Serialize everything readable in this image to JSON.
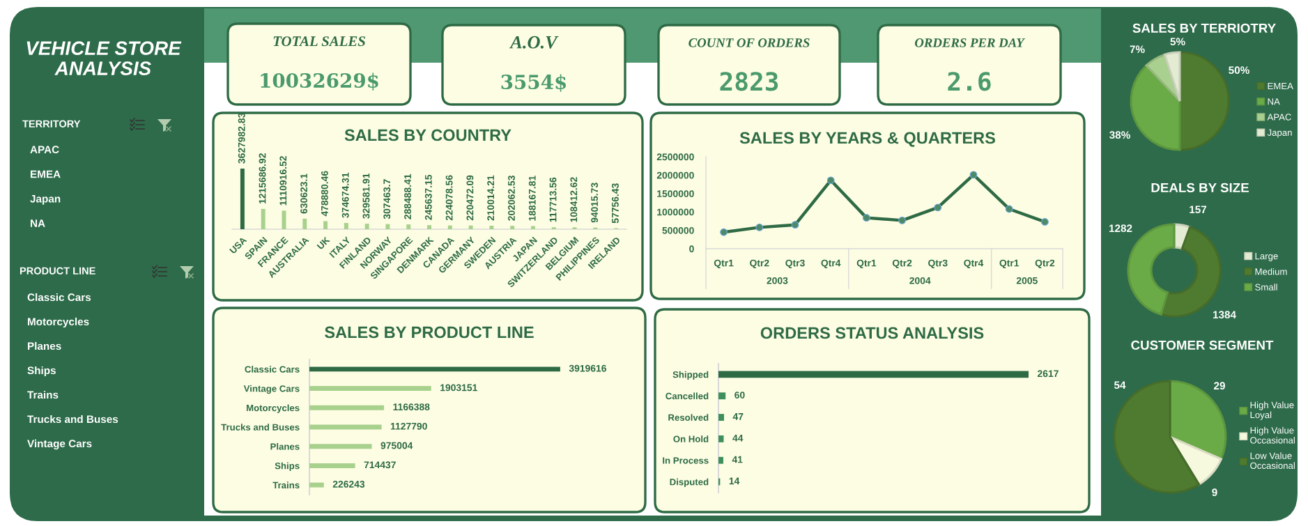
{
  "chart_data": [
    {
      "type": "other",
      "title": "VEHICLE STORE ANALYSIS"
    },
    {
      "type": "other",
      "title": "TERRITORY",
      "annotations": [
        "APAC",
        "EMEA",
        "Japan",
        "NA"
      ]
    },
    {
      "type": "other",
      "title": "PRODUCT LINE",
      "annotations": [
        "Classic Cars",
        "Motorcycles",
        "Planes",
        "Ships",
        "Trains",
        "Trucks and Buses",
        "Vintage Cars"
      ]
    },
    {
      "type": "other",
      "title": "TOTAL SALES",
      "annotations": [
        "10032629$"
      ]
    },
    {
      "type": "other",
      "title": "A.O.V",
      "annotations": [
        "3554$"
      ]
    },
    {
      "type": "other",
      "title": "COUNT OF ORDERS",
      "annotations": [
        "2823"
      ]
    },
    {
      "type": "other",
      "title": "ORDERS PER DAY",
      "annotations": [
        "2.6"
      ]
    },
    {
      "type": "bar",
      "title": "SALES BY COUNTRY",
      "categories": [
        "USA",
        "SPAIN",
        "FRANCE",
        "AUSTRALIA",
        "UK",
        "ITALY",
        "FINLAND",
        "NORWAY",
        "SINGAPORE",
        "DENMARK",
        "CANADA",
        "GERMANY",
        "SWEDEN",
        "AUSTRIA",
        "JAPAN",
        "SWITZERLAND",
        "BELGIUM",
        "PHILIPPINES",
        "IRELAND"
      ],
      "values": [
        3627982.83,
        1215686.92,
        1110916.52,
        630623.1,
        478880.46,
        374674.31,
        329581.91,
        307463.7,
        288488.41,
        245637.15,
        224078.56,
        220472.09,
        210014.21,
        202062.53,
        188167.81,
        117713.56,
        108412.62,
        94015.73,
        57756.43
      ],
      "colors": [
        "#2e6b45",
        "#a9d18e",
        "#a9d18e",
        "#a9d18e",
        "#a9d18e",
        "#a9d18e",
        "#a9d18e",
        "#a9d18e",
        "#a9d18e",
        "#a9d18e",
        "#a9d18e",
        "#a9d18e",
        "#a9d18e",
        "#a9d18e",
        "#a9d18e",
        "#a9d18e",
        "#a9d18e",
        "#a9d18e",
        "#a9d18e"
      ],
      "data_labels": true
    },
    {
      "type": "line",
      "title": "SALES BY YEARS & QUARTERS",
      "categories": [
        "Qtr1",
        "Qtr2",
        "Qtr3",
        "Qtr4",
        "Qtr1",
        "Qtr2",
        "Qtr3",
        "Qtr4",
        "Qtr1",
        "Qtr2"
      ],
      "annotations": [
        "2003",
        "2004",
        "2005"
      ],
      "values": [
        450000,
        580000,
        650000,
        1860000,
        840000,
        770000,
        1120000,
        2010000,
        1080000,
        730000
      ],
      "color": "#2e6b45",
      "marker": "circle",
      "ylim": [
        0,
        2500000
      ],
      "yticks": [
        0,
        500000,
        1000000,
        1500000,
        2000000,
        2500000
      ]
    },
    {
      "type": "bar",
      "orientation": "horizontal",
      "title": "SALES BY PRODUCT LINE",
      "categories": [
        "Classic Cars",
        "Vintage Cars",
        "Motorcycles",
        "Trucks and Buses",
        "Planes",
        "Ships",
        "Trains"
      ],
      "values": [
        3919616,
        1903151,
        1166388,
        1127790,
        975004,
        714437,
        226243
      ],
      "colors": [
        "#2e6b45",
        "#a9d18e",
        "#a9d18e",
        "#a9d18e",
        "#a9d18e",
        "#a9d18e",
        "#a9d18e"
      ],
      "data_labels": true
    },
    {
      "type": "bar",
      "orientation": "horizontal",
      "title": "ORDERS STATUS ANALYSIS",
      "categories": [
        "Shipped",
        "Cancelled",
        "Resolved",
        "On Hold",
        "In Process",
        "Disputed"
      ],
      "values": [
        2617,
        60,
        47,
        44,
        41,
        14
      ],
      "colors": [
        "#2e6b45",
        "#3f8f5c",
        "#3f8f5c",
        "#3f8f5c",
        "#3f8f5c",
        "#3f8f5c"
      ],
      "data_labels": true
    },
    {
      "type": "pie",
      "title": "SALES BY TERRIOTRY",
      "categories": [
        "EMEA",
        "NA",
        "APAC",
        "Japan"
      ],
      "values": [
        50,
        38,
        7,
        5
      ],
      "value_labels": [
        "50%",
        "38%",
        "7%",
        "5%"
      ],
      "colors": [
        "#4f7b30",
        "#6aaa47",
        "#a9d08e",
        "#e4ebd3"
      ],
      "legend": "right"
    },
    {
      "type": "donut",
      "title": "DEALS BY SIZE",
      "categories": [
        "Large",
        "Medium",
        "Small"
      ],
      "values": [
        157,
        1384,
        1282
      ],
      "colors": [
        "#e4ebd3",
        "#4f7b30",
        "#6aaa47"
      ],
      "data_labels": true,
      "legend": "right"
    },
    {
      "type": "pie",
      "title": "CUSTOMER SEGMENT",
      "categories": [
        "High Value Loyal",
        "High Value Occasional",
        "Low Value Occasional"
      ],
      "values": [
        29,
        9,
        54
      ],
      "colors": [
        "#6aaa47",
        "#f7f9de",
        "#4f7b30"
      ],
      "data_labels": true,
      "legend": "right"
    }
  ]
}
